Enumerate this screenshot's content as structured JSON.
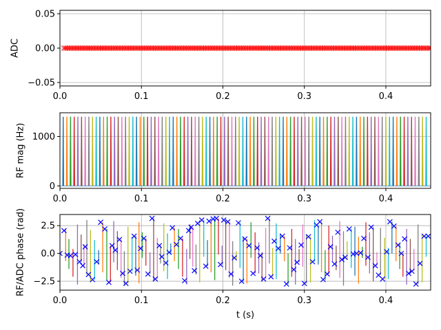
{
  "chart_data": [
    {
      "type": "scatter",
      "ylabel": "ADC",
      "xlabel": "",
      "xlim": [
        0,
        0.455
      ],
      "ylim": [
        -0.055,
        0.055
      ],
      "x_ticks": [
        "0.0",
        "0.1",
        "0.2",
        "0.3",
        "0.4"
      ],
      "x_tick_values": [
        0,
        0.1,
        0.2,
        0.3,
        0.4
      ],
      "y_ticks": [
        "−0.05",
        "0.00",
        "0.05"
      ],
      "y_tick_values": [
        -0.05,
        0,
        0.05
      ],
      "grid": true,
      "marker": "x",
      "marker_color": "#ff0000",
      "adc_samples": {
        "start": 0.005,
        "stop": 0.455,
        "step": 0.00225,
        "value": 0
      }
    },
    {
      "type": "line",
      "ylabel": "RF mag (Hz)",
      "xlabel": "",
      "xlim": [
        0,
        0.455
      ],
      "ylim": [
        -50,
        1480
      ],
      "x_ticks": [
        "0.0",
        "0.1",
        "0.2",
        "0.3",
        "0.4"
      ],
      "x_tick_values": [
        0,
        0.1,
        0.2,
        0.3,
        0.4
      ],
      "y_ticks": [
        "0",
        "1000"
      ],
      "y_tick_values": [
        0,
        1000
      ],
      "grid": true,
      "pulse_amplitude": 1400,
      "pulse_start": 0.004,
      "pulse_step": 0.0045,
      "pulse_count": 100
    },
    {
      "type": "line",
      "ylabel": "RF/ADC phase (rad)",
      "xlabel": "t (s)",
      "xlim": [
        0,
        0.455
      ],
      "ylim": [
        -3.3,
        3.5
      ],
      "x_ticks": [
        "0.0",
        "0.1",
        "0.2",
        "0.3",
        "0.4"
      ],
      "x_tick_values": [
        0,
        0.1,
        0.2,
        0.3,
        0.4
      ],
      "y_ticks": [
        "−2.5",
        "0.0",
        "2.5"
      ],
      "y_tick_values": [
        -2.5,
        0,
        2.5
      ],
      "grid": true,
      "marker": "x",
      "marker_color": "#0000ff",
      "adc_phase_points": [
        [
          0.0,
          0.0
        ],
        [
          0.005,
          2.05
        ],
        [
          0.009,
          -0.15
        ],
        [
          0.013,
          -0.2
        ],
        [
          0.019,
          -0.1
        ],
        [
          0.024,
          -0.75
        ],
        [
          0.028,
          -1.1
        ],
        [
          0.031,
          0.6
        ],
        [
          0.035,
          -1.9
        ],
        [
          0.04,
          -2.35
        ],
        [
          0.045,
          -0.75
        ],
        [
          0.05,
          2.8
        ],
        [
          0.055,
          2.2
        ],
        [
          0.06,
          -2.6
        ],
        [
          0.064,
          0.7
        ],
        [
          0.068,
          0.3
        ],
        [
          0.073,
          1.25
        ],
        [
          0.077,
          -1.8
        ],
        [
          0.081,
          -2.7
        ],
        [
          0.086,
          -1.6
        ],
        [
          0.091,
          1.55
        ],
        [
          0.095,
          -1.5
        ],
        [
          0.099,
          0.45
        ],
        [
          0.103,
          1.35
        ],
        [
          0.108,
          -1.85
        ],
        [
          0.113,
          3.15
        ],
        [
          0.117,
          -2.3
        ],
        [
          0.122,
          0.7
        ],
        [
          0.125,
          -0.3
        ],
        [
          0.13,
          -0.85
        ],
        [
          0.134,
          0.1
        ],
        [
          0.138,
          2.3
        ],
        [
          0.143,
          0.8
        ],
        [
          0.148,
          1.35
        ],
        [
          0.153,
          -2.45
        ],
        [
          0.158,
          2.05
        ],
        [
          0.161,
          2.35
        ],
        [
          0.165,
          -1.55
        ],
        [
          0.169,
          2.7
        ],
        [
          0.174,
          3.0
        ],
        [
          0.179,
          -1.15
        ],
        [
          0.183,
          2.9
        ],
        [
          0.188,
          3.1
        ],
        [
          0.192,
          3.15
        ],
        [
          0.197,
          -1.0
        ],
        [
          0.201,
          3.0
        ],
        [
          0.206,
          2.85
        ],
        [
          0.21,
          -1.85
        ],
        [
          0.214,
          -0.4
        ],
        [
          0.219,
          2.75
        ],
        [
          0.223,
          -2.5
        ],
        [
          0.227,
          1.3
        ],
        [
          0.232,
          0.7
        ],
        [
          0.237,
          -1.8
        ],
        [
          0.242,
          0.5
        ],
        [
          0.246,
          -0.2
        ],
        [
          0.25,
          -2.3
        ],
        [
          0.255,
          3.15
        ],
        [
          0.259,
          -2.1
        ],
        [
          0.263,
          1.1
        ],
        [
          0.268,
          0.45
        ],
        [
          0.273,
          1.55
        ],
        [
          0.278,
          -2.75
        ],
        [
          0.282,
          0.5
        ],
        [
          0.287,
          -1.45
        ],
        [
          0.291,
          -0.8
        ],
        [
          0.296,
          0.75
        ],
        [
          0.3,
          -2.7
        ],
        [
          0.305,
          1.5
        ],
        [
          0.31,
          -0.75
        ],
        [
          0.315,
          2.55
        ],
        [
          0.319,
          2.85
        ],
        [
          0.323,
          -2.35
        ],
        [
          0.328,
          -1.85
        ],
        [
          0.332,
          0.6
        ],
        [
          0.337,
          -0.95
        ],
        [
          0.341,
          1.9
        ],
        [
          0.346,
          -0.55
        ],
        [
          0.35,
          -0.35
        ],
        [
          0.355,
          2.2
        ],
        [
          0.36,
          -0.05
        ],
        [
          0.364,
          0.0
        ],
        [
          0.369,
          0.05
        ],
        [
          0.373,
          1.35
        ],
        [
          0.378,
          -0.35
        ],
        [
          0.382,
          2.35
        ],
        [
          0.387,
          -1.1
        ],
        [
          0.391,
          -1.95
        ],
        [
          0.396,
          -2.3
        ],
        [
          0.401,
          0.15
        ],
        [
          0.405,
          2.85
        ],
        [
          0.41,
          2.45
        ],
        [
          0.415,
          0.75
        ],
        [
          0.419,
          0.0
        ],
        [
          0.423,
          1.3
        ],
        [
          0.428,
          -1.8
        ],
        [
          0.432,
          -1.6
        ],
        [
          0.437,
          -2.75
        ],
        [
          0.442,
          -0.9
        ],
        [
          0.447,
          1.55
        ],
        [
          0.452,
          1.55
        ]
      ]
    }
  ],
  "colors": {
    "series_cycle": [
      "#1f77b4",
      "#ff7f0e",
      "#2ca02c",
      "#d62728",
      "#9467bd",
      "#8c564b",
      "#e377c2",
      "#7f7f7f",
      "#bcbd22",
      "#17becf"
    ],
    "grid": "#b0b0b0",
    "adc_marker": "#ff0000",
    "phase_marker": "#0000ff"
  }
}
